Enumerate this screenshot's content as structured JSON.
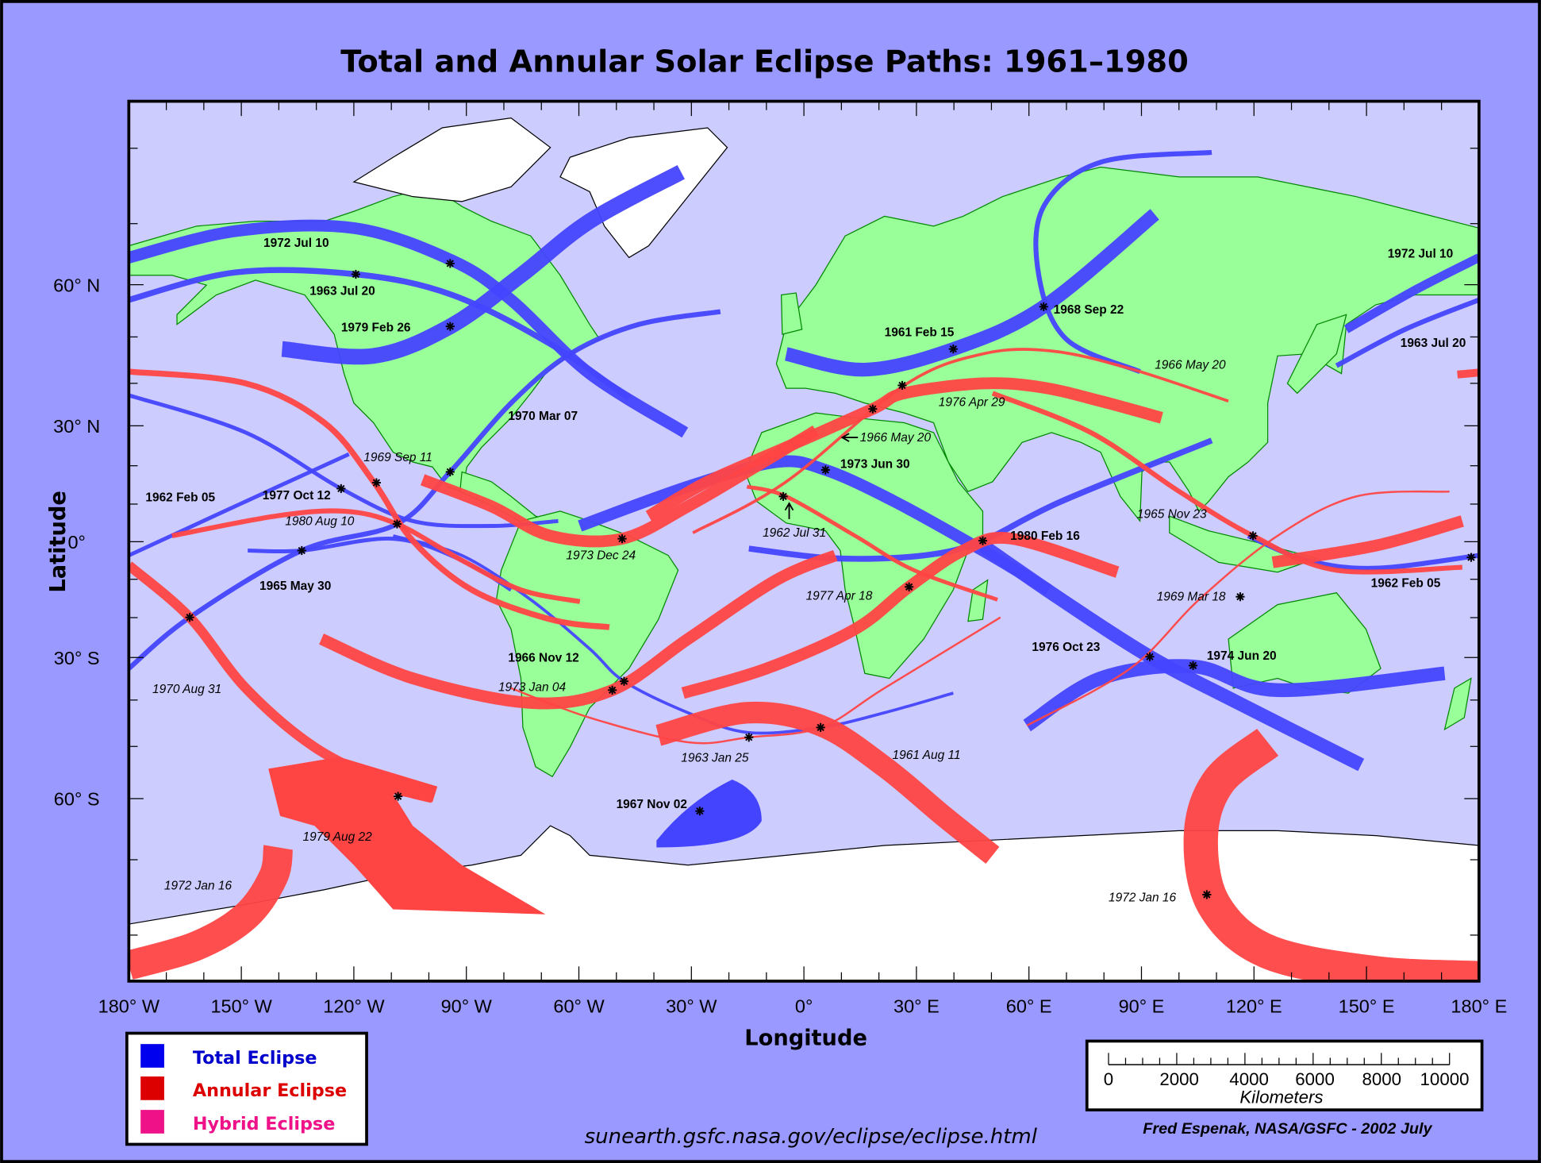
{
  "title": "Total and Annular Solar Eclipse Paths:  1961–1980",
  "axes": {
    "xlabel": "Longitude",
    "ylabel": "Latitude",
    "lat_ticks": [
      "60° N",
      "30° N",
      "0°",
      "30° S",
      "60° S"
    ],
    "lon_ticks": [
      "180° W",
      "150° W",
      "120° W",
      "90° W",
      "60° W",
      "30° W",
      "0°",
      "30° E",
      "60° E",
      "90° E",
      "120° E",
      "150° E",
      "180° E"
    ]
  },
  "colors": {
    "background": "#9999ff",
    "ocean": "#ccccff",
    "land": "#99ff99",
    "ice": "#ffffff",
    "total": "#4444ff",
    "annular": "#ff4444",
    "hybrid": "#ee1188"
  },
  "legend": {
    "items": [
      {
        "label": "Total Eclipse",
        "color": "#0000ee",
        "text_color": "#0000cc"
      },
      {
        "label": "Annular Eclipse",
        "color": "#dd0000",
        "text_color": "#dd0000"
      },
      {
        "label": "Hybrid Eclipse",
        "color": "#ee1188",
        "text_color": "#ee1188"
      }
    ]
  },
  "eclipse_labels": [
    {
      "text": "1972 Jul 10",
      "type": "total"
    },
    {
      "text": "1963 Jul 20",
      "type": "total"
    },
    {
      "text": "1979 Feb 26",
      "type": "total"
    },
    {
      "text": "1970 Mar 07",
      "type": "total"
    },
    {
      "text": "1962 Feb 05",
      "type": "total"
    },
    {
      "text": "1977 Oct 12",
      "type": "total"
    },
    {
      "text": "1965 May 30",
      "type": "total"
    },
    {
      "text": "1966 Nov 12",
      "type": "total"
    },
    {
      "text": "1961 Feb 15",
      "type": "total"
    },
    {
      "text": "1968 Sep 22",
      "type": "total"
    },
    {
      "text": "1973 Jun 30",
      "type": "total"
    },
    {
      "text": "1980 Feb 16",
      "type": "total"
    },
    {
      "text": "1976 Oct 23",
      "type": "total"
    },
    {
      "text": "1974 Jun 20",
      "type": "total"
    },
    {
      "text": "1962 Feb 05",
      "type": "total"
    },
    {
      "text": "1972 Jul 10",
      "type": "total"
    },
    {
      "text": "1963 Jul 20",
      "type": "total"
    },
    {
      "text": "1967 Nov 02",
      "type": "total"
    },
    {
      "text": "1969 Sep 11",
      "type": "annular"
    },
    {
      "text": "1980 Aug 10",
      "type": "annular"
    },
    {
      "text": "1973 Dec 24",
      "type": "annular"
    },
    {
      "text": "1970 Aug 31",
      "type": "annular"
    },
    {
      "text": "1973 Jan 04",
      "type": "annular"
    },
    {
      "text": "1963 Jan 25",
      "type": "annular"
    },
    {
      "text": "1961 Aug 11",
      "type": "annular"
    },
    {
      "text": "1977 Apr 18",
      "type": "annular"
    },
    {
      "text": "1962 Jul 31",
      "type": "annular"
    },
    {
      "text": "1966 May 20",
      "type": "annular"
    },
    {
      "text": "1976 Apr 29",
      "type": "annular"
    },
    {
      "text": "1966 May 20",
      "type": "annular"
    },
    {
      "text": "1965 Nov 23",
      "type": "annular"
    },
    {
      "text": "1969 Mar 18",
      "type": "annular"
    },
    {
      "text": "1979 Aug 22",
      "type": "annular"
    },
    {
      "text": "1972 Jan 16",
      "type": "annular"
    },
    {
      "text": "1972 Jan 16",
      "type": "annular"
    }
  ],
  "scale_bar": {
    "ticks": [
      "0",
      "2000",
      "4000",
      "6000",
      "8000",
      "10000"
    ],
    "unit": "Kilometers"
  },
  "url": "sunearth.gsfc.nasa.gov/eclipse/eclipse.html",
  "credit": "Fred Espenak, NASA/GSFC - 2002 July"
}
